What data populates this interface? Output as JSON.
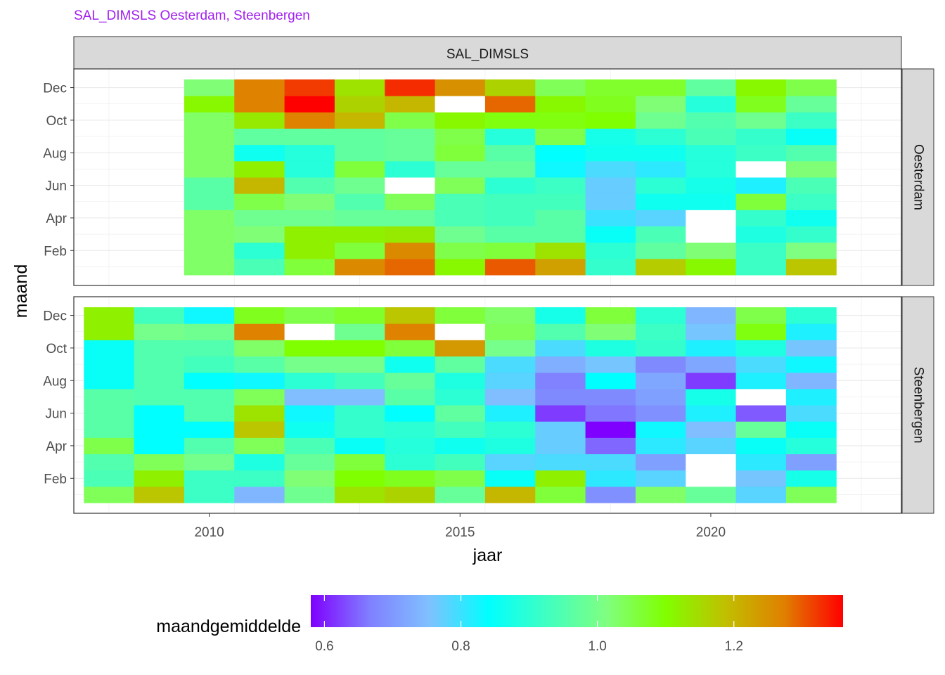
{
  "colors": {
    "title": "#a020f0",
    "strip": "#d9d9d9",
    "grid": "#ebebeb",
    "missing": "#ffffff"
  },
  "chart_data": {
    "type": "heatmap",
    "title": "SAL_DIMSLS Oesterdam, Steenbergen",
    "facet_strip": "SAL_DIMSLS",
    "xlabel": "jaar",
    "ylabel": "maand",
    "x_ticks": [
      "2010",
      "2015",
      "2020"
    ],
    "y_ticks": [
      "Dec",
      "Oct",
      "Aug",
      "Jun",
      "Apr",
      "Feb"
    ],
    "xlim": [
      2007.3,
      2023.8
    ],
    "years": [
      2008,
      2009,
      2010,
      2011,
      2012,
      2013,
      2014,
      2015,
      2016,
      2017,
      2018,
      2019,
      2020,
      2021,
      2022
    ],
    "months": [
      "Jan",
      "Feb",
      "Mar",
      "Apr",
      "May",
      "Jun",
      "Jul",
      "Aug",
      "Sep",
      "Oct",
      "Nov",
      "Dec"
    ],
    "legend": {
      "title": "maandgemiddelde",
      "position": "bottom",
      "ticks": [
        "0.6",
        "0.8",
        "1.0",
        "1.2"
      ],
      "tick_values": [
        0.6,
        0.8,
        1.0,
        1.2
      ],
      "range": [
        0.58,
        1.36
      ],
      "colors": [
        "#7f00ff",
        "#8080ff",
        "#80c0ff",
        "#00ffff",
        "#40ffc0",
        "#80ff80",
        "#80ff00",
        "#c0c000",
        "#e08000",
        "#ff0000"
      ]
    },
    "panels": [
      {
        "name": "Oesterdam",
        "values": {
          "2010": [
            1.03,
            1.03,
            1.03,
            1.03,
            0.96,
            0.96,
            1.03,
            1.03,
            1.03,
            1.03,
            1.11,
            1.02
          ],
          "2011": [
            0.94,
            0.9,
            1.02,
            0.99,
            1.05,
            1.2,
            1.12,
            0.86,
            0.97,
            1.13,
            1.27,
            1.27
          ],
          "2012": [
            1.06,
            1.12,
            1.12,
            0.99,
            1.02,
            0.95,
            0.89,
            0.89,
            0.97,
            1.27,
            1.36,
            1.32
          ],
          "2013": [
            1.26,
            1.06,
            1.12,
            0.98,
            0.95,
            0.99,
            1.06,
            0.97,
            0.97,
            1.2,
            1.16,
            1.14
          ],
          "2014": [
            1.29,
            1.26,
            1.13,
            0.98,
            1.04,
            null,
            0.9,
            0.98,
            0.98,
            1.05,
            1.2,
            1.33
          ],
          "2015": [
            1.11,
            1.05,
            0.99,
            0.94,
            0.94,
            1.04,
            0.98,
            1.06,
            1.05,
            1.11,
            null,
            1.25
          ],
          "2016": [
            1.3,
            1.06,
            0.96,
            0.93,
            0.93,
            0.9,
            0.98,
            0.96,
            0.89,
            1.09,
            1.29,
            1.16
          ],
          "2017": [
            1.23,
            1.14,
            0.96,
            0.96,
            0.93,
            0.92,
            0.83,
            0.84,
            1.05,
            1.09,
            1.11,
            1.04
          ],
          "2018": [
            0.91,
            0.9,
            0.85,
            0.8,
            0.77,
            0.77,
            0.79,
            0.86,
            0.87,
            1.1,
            1.08,
            1.07
          ],
          "2019": [
            1.17,
            0.97,
            0.94,
            0.78,
            0.86,
            0.9,
            0.81,
            0.86,
            0.9,
            0.99,
            1.02,
            1.07
          ],
          "2020": [
            1.11,
            1.02,
            null,
            null,
            0.86,
            0.87,
            0.89,
            0.89,
            0.94,
            0.95,
            0.89,
            0.97
          ],
          "2021": [
            0.92,
            0.92,
            0.88,
            0.91,
            1.06,
            0.82,
            null,
            0.92,
            0.91,
            0.99,
            1.08,
            1.11
          ],
          "2022": [
            1.18,
            1.01,
            0.91,
            0.86,
            0.92,
            0.94,
            1.02,
            0.95,
            0.85,
            0.92,
            0.98,
            1.05
          ]
        }
      },
      {
        "name": "Steenbergen",
        "values": {
          "2008": [
            1.04,
            0.94,
            0.95,
            1.05,
            0.96,
            0.96,
            0.96,
            0.85,
            0.85,
            0.85,
            1.12,
            1.12
          ],
          "2009": [
            1.18,
            1.12,
            1.04,
            0.84,
            0.84,
            0.84,
            0.95,
            0.95,
            0.95,
            0.95,
            1.0,
            0.93
          ],
          "2010": [
            0.92,
            0.92,
            1.0,
            0.95,
            0.84,
            0.95,
            0.95,
            0.84,
            0.93,
            0.95,
            0.99,
            0.83
          ],
          "2011": [
            0.74,
            0.92,
            0.88,
            1.04,
            1.18,
            1.14,
            1.04,
            0.83,
            0.96,
            1.03,
            1.27,
            1.08
          ],
          "2012": [
            0.99,
            1.02,
            0.98,
            0.94,
            0.86,
            0.83,
            0.75,
            0.9,
            1.0,
            1.1,
            null,
            1.05
          ],
          "2013": [
            1.14,
            1.1,
            1.06,
            0.85,
            0.91,
            0.91,
            0.75,
            0.93,
            1.0,
            1.1,
            0.99,
            1.07
          ],
          "2014": [
            1.16,
            1.08,
            0.9,
            0.89,
            0.9,
            0.84,
            0.96,
            0.98,
            0.86,
            1.06,
            1.27,
            1.18
          ],
          "2015": [
            0.98,
            1.05,
            0.93,
            0.86,
            0.93,
            0.97,
            0.9,
            0.88,
            0.97,
            1.24,
            null,
            1.06
          ],
          "2016": [
            1.2,
            0.85,
            0.78,
            0.88,
            0.9,
            0.82,
            0.75,
            0.78,
            0.79,
            1.0,
            1.04,
            1.03
          ],
          "2017": [
            1.06,
            1.12,
            0.79,
            0.77,
            0.77,
            0.62,
            0.68,
            0.67,
            0.73,
            0.79,
            0.95,
            0.87
          ],
          "2018": [
            0.69,
            0.81,
            0.79,
            0.65,
            0.58,
            0.66,
            0.68,
            0.84,
            0.76,
            0.88,
            1.02,
            1.06
          ],
          "2019": [
            1.03,
            0.78,
            0.71,
            0.81,
            0.83,
            0.69,
            0.71,
            0.72,
            0.68,
            0.91,
            0.92,
            0.9
          ],
          "2020": [
            0.98,
            null,
            null,
            0.78,
            0.75,
            0.82,
            0.87,
            0.62,
            0.72,
            0.82,
            0.76,
            0.74
          ],
          "2021": [
            0.78,
            0.76,
            0.81,
            0.85,
            0.98,
            0.64,
            null,
            0.82,
            0.79,
            0.88,
            1.09,
            1.05
          ],
          "2022": [
            1.04,
            0.87,
            0.71,
            0.89,
            0.85,
            0.79,
            0.82,
            0.74,
            0.83,
            0.76,
            0.82,
            0.9
          ]
        }
      }
    ]
  }
}
